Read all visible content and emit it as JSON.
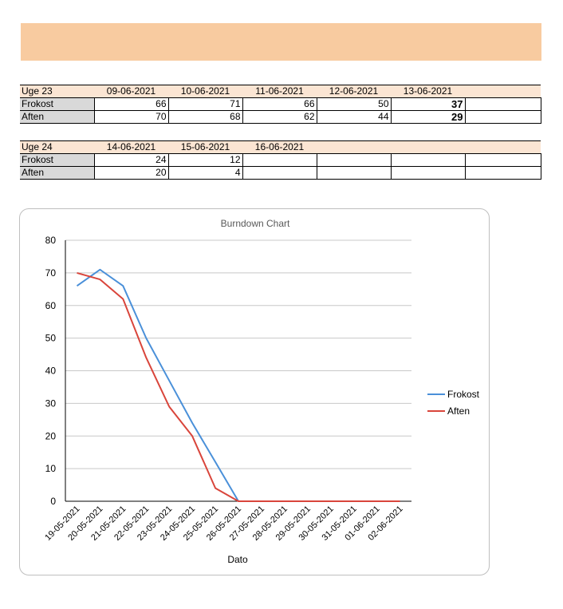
{
  "week23": {
    "label": "Uge 23",
    "dates": [
      "09-06-2021",
      "10-06-2021",
      "11-06-2021",
      "12-06-2021",
      "13-06-2021",
      ""
    ],
    "rows": [
      {
        "label": "Frokost",
        "values": [
          "66",
          "71",
          "66",
          "50",
          "37",
          ""
        ]
      },
      {
        "label": "Aften",
        "values": [
          "70",
          "68",
          "62",
          "44",
          "29",
          ""
        ]
      }
    ]
  },
  "week24": {
    "label": "Uge 24",
    "dates": [
      "14-06-2021",
      "15-06-2021",
      "16-06-2021",
      "",
      "",
      ""
    ],
    "rows": [
      {
        "label": "Frokost",
        "values": [
          "24",
          "12",
          "",
          "",
          "",
          ""
        ]
      },
      {
        "label": "Aften",
        "values": [
          "20",
          "4",
          "",
          "",
          "",
          ""
        ]
      }
    ]
  },
  "chart_data": {
    "type": "line",
    "title": "Burndown Chart",
    "xlabel": "Dato",
    "ylabel": "",
    "ylim": [
      0,
      80
    ],
    "yticks": [
      0,
      10,
      20,
      30,
      40,
      50,
      60,
      70,
      80
    ],
    "grid": true,
    "legend_position": "right",
    "categories": [
      "19-05-2021",
      "20-05-2021",
      "21-05-2021",
      "22-05-2021",
      "23-05-2021",
      "24-05-2021",
      "25-05-2021",
      "26-05-2021",
      "27-05-2021",
      "28-05-2021",
      "29-05-2021",
      "30-05-2021",
      "31-05-2021",
      "01-06-2021",
      "02-06-2021"
    ],
    "series": [
      {
        "name": "Frokost",
        "color": "#4a90d9",
        "values": [
          66,
          71,
          66,
          50,
          37,
          24,
          12,
          0,
          0,
          0,
          0,
          0,
          0,
          0,
          0
        ]
      },
      {
        "name": "Aften",
        "color": "#d9453b",
        "values": [
          70,
          68,
          62,
          44,
          29,
          20,
          4,
          0,
          0,
          0,
          0,
          0,
          0,
          0,
          0
        ]
      }
    ]
  }
}
